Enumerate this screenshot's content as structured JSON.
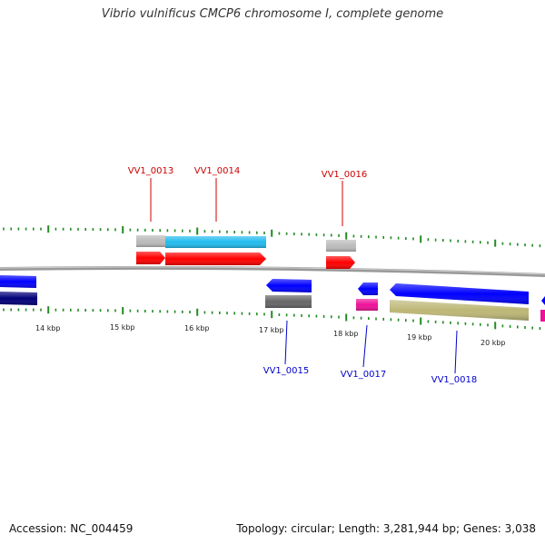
{
  "title": "Vibrio vulnificus CMCP6 chromosome I, complete genome",
  "footer": {
    "accession": "Accession: NC_004459",
    "summary": "Topology: circular; Length: 3,281,944 bp; Genes: 3,038"
  },
  "colors": {
    "top_label": "#cc0000",
    "bottom_label": "#0000cc",
    "tick": "#228B22",
    "backbone": "#888888",
    "gene_red": "#ff0000",
    "gene_blue": "#0000ff",
    "cds_cyan": "#22bbee",
    "cds_gray": "#bbbbbb",
    "cds_darkgray": "#666666",
    "cds_navy": "#00007a",
    "cds_magenta": "#ee1199",
    "cds_khaki": "#bdb776"
  },
  "ticks": [
    {
      "label": "14 kbp"
    },
    {
      "label": "15 kbp"
    },
    {
      "label": "16 kbp"
    },
    {
      "label": "17 kbp"
    },
    {
      "label": "18 kbp"
    },
    {
      "label": "19 kbp"
    },
    {
      "label": "20 kbp"
    }
  ],
  "gene_labels": [
    {
      "text": "VV1_0013",
      "strand": "top"
    },
    {
      "text": "VV1_0014",
      "strand": "top"
    },
    {
      "text": "VV1_0016",
      "strand": "top"
    },
    {
      "text": "VV1_0015",
      "strand": "bottom"
    },
    {
      "text": "VV1_0017",
      "strand": "bottom"
    },
    {
      "text": "VV1_0018",
      "strand": "bottom"
    }
  ]
}
